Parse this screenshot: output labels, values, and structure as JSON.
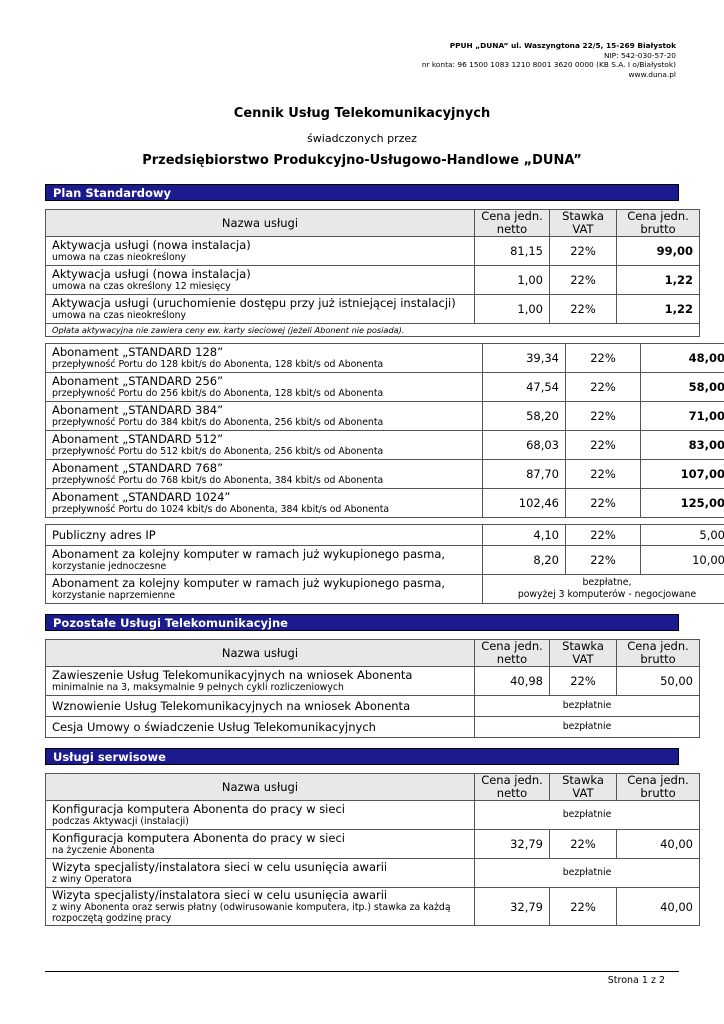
{
  "header": {
    "lines": [
      "PPUH „DUNA” ul. Waszyngtona 22/5, 15-269 Białystok",
      "NIP: 542-030-57-20",
      "nr konta: 96 1500 1083 1210 8001 3620 0000 (KB S.A. I o/Białystok)",
      "www.duna.pl"
    ]
  },
  "title": "Cennik Usług Telekomunikacyjnych",
  "subtitle": "świadczonych przez",
  "company": "Przedsiębiorstwo Produkcyjno-Usługowo-Handlowe „DUNA”",
  "sections": [
    {
      "title": "Plan Standardowy",
      "columns": [
        "Nazwa usługi",
        "Cena jedn. netto",
        "Stawka VAT",
        "Cena jedn. brutto"
      ],
      "groups": [
        {
          "rows": [
            {
              "name": "Aktywacja usługi (nowa instalacja)",
              "sub": "umowa na czas nieokreślony",
              "netto": "81,15",
              "vat": "22%",
              "brutto": "99,00"
            },
            {
              "name": "Aktywacja usługi (nowa instalacja)",
              "sub": "umowa na czas określony 12 miesięcy",
              "netto": "1,00",
              "vat": "22%",
              "brutto": "1,22"
            },
            {
              "name": "Aktywacja usługi (uruchomienie dostępu przy już istniejącej instalacji)",
              "sub": "umowa na czas nieokreślony",
              "netto": "1,00",
              "vat": "22%",
              "brutto": "1,22"
            }
          ],
          "footnote": "Opłata aktywacyjna nie zawiera ceny ew. karty sieciowej (jeżeli Abonent nie posiada)."
        },
        {
          "rows": [
            {
              "name": "Abonament „STANDARD 128”",
              "sub": "przepływność Portu do 128 kbit/s do Abonenta, 128 kbit/s od Abonenta",
              "netto": "39,34",
              "vat": "22%",
              "brutto": "48,00"
            },
            {
              "name": "Abonament „STANDARD 256”",
              "sub": "przepływność Portu do 256 kbit/s do Abonenta, 128 kbit/s od Abonenta",
              "netto": "47,54",
              "vat": "22%",
              "brutto": "58,00"
            },
            {
              "name": "Abonament „STANDARD 384”",
              "sub": "przepływność Portu do 384 kbit/s do Abonenta, 256 kbit/s od Abonenta",
              "netto": "58,20",
              "vat": "22%",
              "brutto": "71,00"
            },
            {
              "name": "Abonament „STANDARD 512”",
              "sub": "przepływność Portu do 512 kbit/s do Abonenta, 256 kbit/s od Abonenta",
              "netto": "68,03",
              "vat": "22%",
              "brutto": "83,00"
            },
            {
              "name": "Abonament „STANDARD 768”",
              "sub": "przepływność Portu do 768 kbit/s do Abonenta, 384 kbit/s od Abonenta",
              "netto": "87,70",
              "vat": "22%",
              "brutto": "107,00"
            },
            {
              "name": "Abonament „STANDARD 1024”",
              "sub": "przepływność Portu do 1024 kbit/s do Abonenta, 384 kbit/s od Abonenta",
              "netto": "102,46",
              "vat": "22%",
              "brutto": "125,00"
            }
          ]
        },
        {
          "rows": [
            {
              "name": "Publiczny adres IP",
              "netto": "4,10",
              "vat": "22%",
              "brutto": "5,00"
            },
            {
              "name": "Abonament za kolejny komputer w ramach już wykupionego pasma,",
              "sub": "korzystanie jednoczesne",
              "netto": "8,20",
              "vat": "22%",
              "brutto": "10,00"
            },
            {
              "name": "Abonament za kolejny komputer w ramach już wykupionego pasma,",
              "sub": "korzystanie naprzemienne",
              "price_note": [
                "bezpłatne,",
                "powyżej 3 komputerów - negocjowane"
              ]
            }
          ]
        }
      ]
    },
    {
      "title": "Pozostałe Usługi Telekomunikacyjne",
      "columns": [
        "Nazwa usługi",
        "Cena jedn. netto",
        "Stawka VAT",
        "Cena jedn. brutto"
      ],
      "groups": [
        {
          "rows": [
            {
              "name": "Zawieszenie Usług Telekomunikacyjnych na wniosek Abonenta",
              "sub": "minimalnie na 3, maksymalnie 9 pełnych cykli rozliczeniowych",
              "netto": "40,98",
              "vat": "22%",
              "brutto": "50,00"
            },
            {
              "name": "Wznowienie Usług Telekomunikacyjnych na wniosek Abonenta",
              "price_note": [
                "bezpłatnie"
              ]
            },
            {
              "name": "Cesja Umowy o świadczenie Usług Telekomunikacyjnych",
              "price_note": [
                "bezpłatnie"
              ]
            }
          ]
        }
      ]
    },
    {
      "title": "Usługi serwisowe",
      "columns": [
        "Nazwa usługi",
        "Cena jedn. netto",
        "Stawka VAT",
        "Cena jedn. brutto"
      ],
      "groups": [
        {
          "rows": [
            {
              "name": "Konfiguracja komputera Abonenta do pracy w sieci",
              "sub": "podczas Aktywacji (instalacji)",
              "price_note": [
                "bezpłatnie"
              ]
            },
            {
              "name": "Konfiguracja komputera Abonenta do pracy w sieci",
              "sub": "na życzenie Abonenta",
              "netto": "32,79",
              "vat": "22%",
              "brutto": "40,00"
            },
            {
              "name": "Wizyta specjalisty/instalatora sieci w celu usunięcia awarii",
              "sub": "z winy Operatora",
              "price_note": [
                "bezpłatnie"
              ]
            },
            {
              "name": "Wizyta specjalisty/instalatora sieci w celu usunięcia awarii",
              "sub": "z winy Abonenta oraz serwis płatny (odwirusowanie komputera, itp.) stawka za każdą rozpoczętą godzinę pracy",
              "netto": "32,79",
              "vat": "22%",
              "brutto": "40,00"
            }
          ]
        }
      ]
    }
  ],
  "footer": "Strona 1 z 2"
}
